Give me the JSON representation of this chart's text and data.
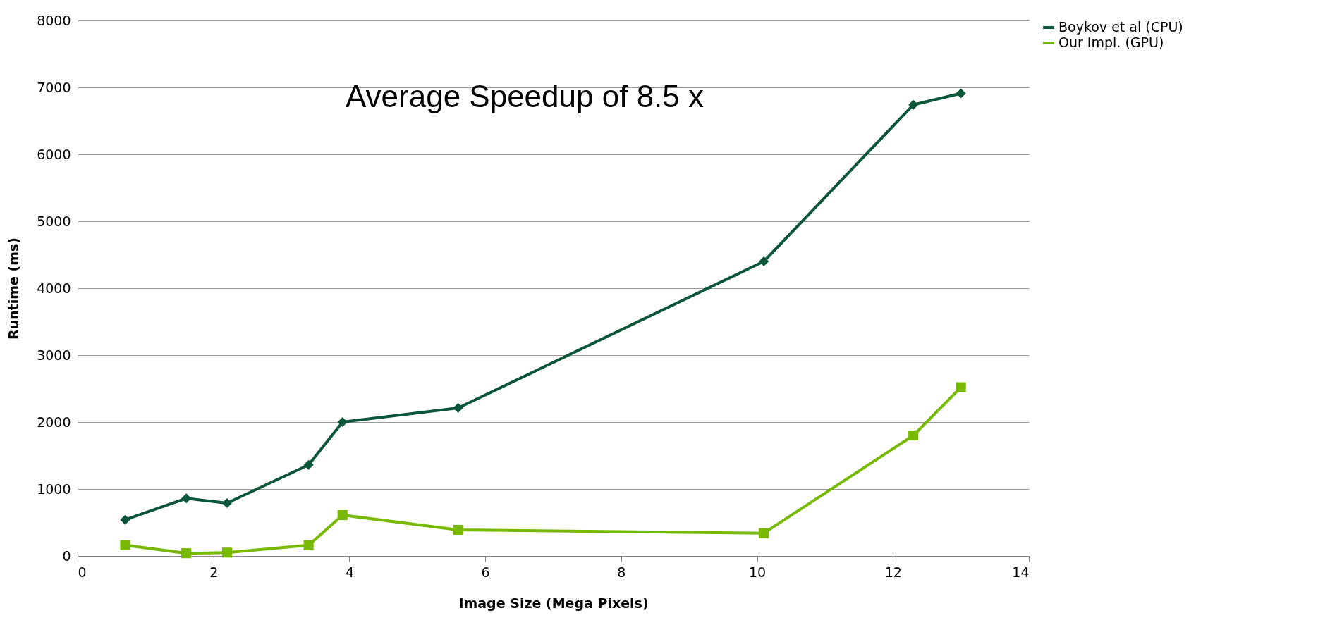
{
  "chart_data": {
    "type": "line",
    "xlabel": "Image Size (Mega Pixels)",
    "ylabel": "Runtime (ms)",
    "annotations": [
      "Average Speedup of 8.5 x"
    ],
    "x": [
      0.7,
      1.6,
      2.2,
      3.4,
      3.9,
      5.6,
      10.1,
      12.3,
      13.0
    ],
    "series": [
      {
        "name": "Boykov et al (CPU)",
        "color": "#0b5538",
        "marker": "diamond",
        "values": [
          540,
          860,
          790,
          1360,
          2000,
          2210,
          4400,
          6740,
          6910
        ]
      },
      {
        "name": "Our Impl. (GPU)",
        "color": "#76b900",
        "marker": "square",
        "values": [
          160,
          40,
          50,
          160,
          610,
          390,
          340,
          1800,
          2520
        ]
      }
    ],
    "xlim": [
      0,
      14
    ],
    "xticks": [
      0,
      2,
      4,
      6,
      8,
      10,
      12,
      14
    ],
    "ylim": [
      0,
      8000
    ],
    "yticks": [
      0,
      1000,
      2000,
      3000,
      4000,
      5000,
      6000,
      7000,
      8000
    ],
    "grid": "y",
    "legend": "right",
    "line_style": "solid"
  }
}
